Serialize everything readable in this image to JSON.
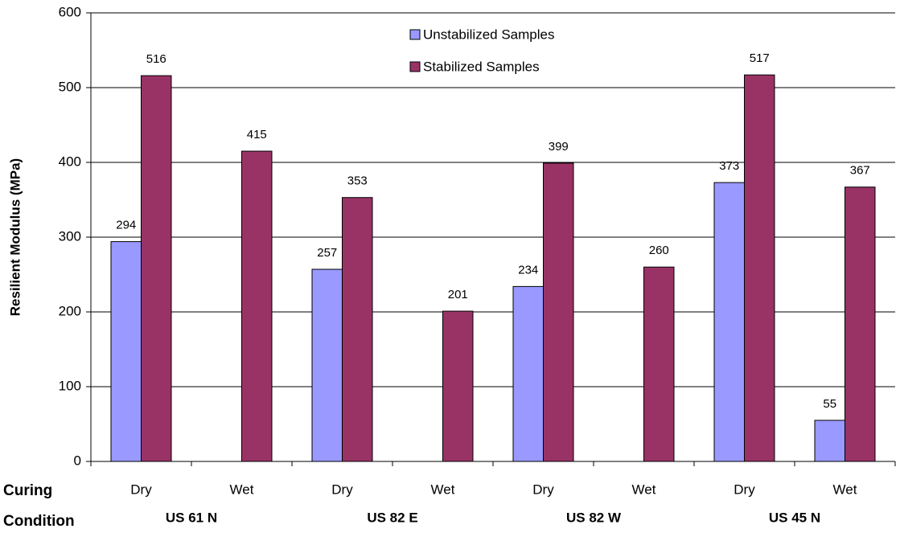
{
  "chart_data": {
    "type": "bar",
    "y_label": "Resilient Modulus (MPa)",
    "x_label": "Curing Condition",
    "categories": [
      "Dry",
      "Wet",
      "Dry",
      "Wet",
      "Dry",
      "Wet",
      "Dry",
      "Wet"
    ],
    "category_groups": [
      "US 61 N",
      "US 82 E",
      "US 82 W",
      "US 45 N"
    ],
    "series": [
      {
        "name": "Unstabilized Samples",
        "color": "#9999ff",
        "values": [
          294,
          null,
          257,
          null,
          234,
          null,
          373,
          55
        ]
      },
      {
        "name": "Stabilized Samples",
        "color": "#993366",
        "values": [
          516,
          415,
          353,
          201,
          399,
          260,
          517,
          367
        ]
      }
    ],
    "ylim": [
      0,
      600
    ],
    "yticks": [
      0,
      100,
      200,
      300,
      400,
      500,
      600
    ],
    "grid": true
  }
}
